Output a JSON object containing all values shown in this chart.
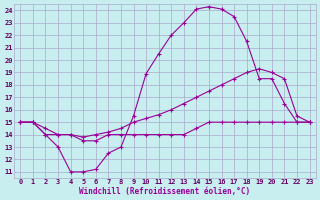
{
  "xlabel": "Windchill (Refroidissement éolien,°C)",
  "xlim": [
    -0.5,
    23.5
  ],
  "ylim": [
    10.5,
    24.5
  ],
  "xticks": [
    0,
    1,
    2,
    3,
    4,
    5,
    6,
    7,
    8,
    9,
    10,
    11,
    12,
    13,
    14,
    15,
    16,
    17,
    18,
    19,
    20,
    21,
    22,
    23
  ],
  "yticks": [
    11,
    12,
    13,
    14,
    15,
    16,
    17,
    18,
    19,
    20,
    21,
    22,
    23,
    24
  ],
  "bg_color": "#c8eef0",
  "grid_color": "#aaaacc",
  "line_color": "#990099",
  "line1_x": [
    0,
    1,
    2,
    3,
    4,
    5,
    6,
    7,
    8,
    9,
    10,
    11,
    12,
    13,
    14,
    15,
    16,
    17,
    18,
    19,
    20,
    21,
    22,
    23
  ],
  "line1_y": [
    15,
    15,
    14,
    13,
    11,
    11,
    11.2,
    12.5,
    13,
    15.5,
    18.9,
    20.5,
    22,
    23,
    24.1,
    24.3,
    24.1,
    23.5,
    21.5,
    18.5,
    18.5,
    16.5,
    15,
    15
  ],
  "line2_x": [
    0,
    1,
    2,
    3,
    4,
    5,
    6,
    7,
    8,
    9,
    10,
    11,
    12,
    13,
    14,
    15,
    16,
    17,
    18,
    19,
    20,
    21,
    22,
    23
  ],
  "line2_y": [
    15,
    15,
    14.5,
    14,
    14,
    13.8,
    14,
    14.2,
    14.5,
    15,
    15.3,
    15.6,
    16,
    16.5,
    17,
    17.5,
    18,
    18.5,
    19,
    19.3,
    19,
    18.5,
    15.5,
    15
  ],
  "line3_x": [
    0,
    1,
    2,
    3,
    4,
    5,
    6,
    7,
    8,
    9,
    10,
    11,
    12,
    13,
    14,
    15,
    16,
    17,
    18,
    19,
    20,
    21,
    22,
    23
  ],
  "line3_y": [
    15,
    15,
    14,
    14,
    14,
    13.5,
    13.5,
    14,
    14,
    14,
    14,
    14,
    14,
    14,
    14.5,
    15,
    15,
    15,
    15,
    15,
    15,
    15,
    15,
    15
  ]
}
